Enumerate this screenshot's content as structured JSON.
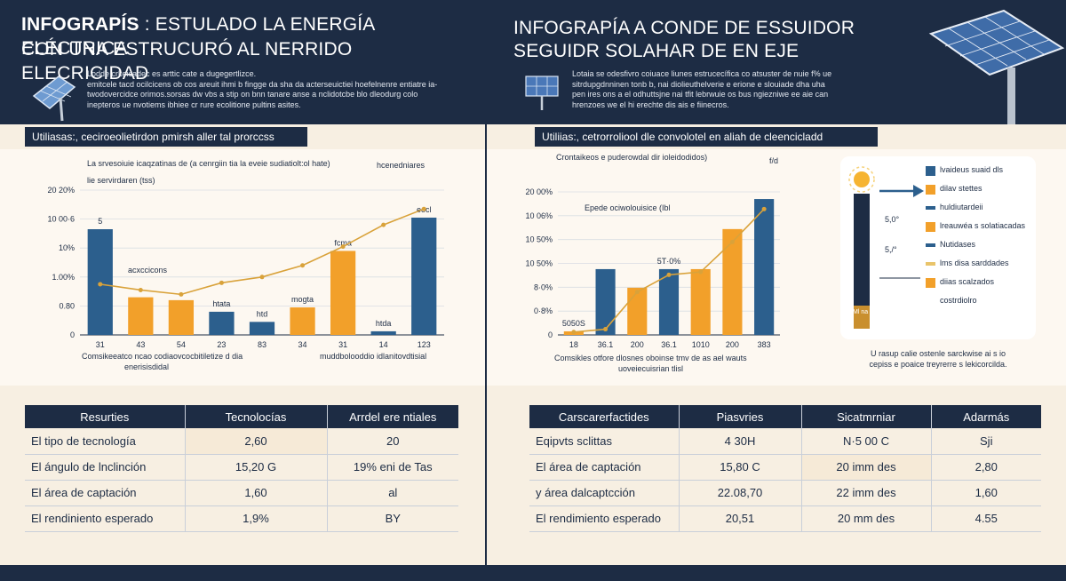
{
  "left": {
    "title_bold": "INFOGRAPÍS",
    "title_rest_1": " : ESTULADO LA ENERGÍA ELÉCTRICA",
    "title_line_2": "CON UNA ESTRUCURÓ AL NERRIDO ELECRICIDAD",
    "desc": [
      "Lodde crkeicadec es arttic cate a dugegertlizce.",
      "emitcele tacd ocilcicens ob cos areuit ihmi b fingge da sha da acterseuictiei hoefelnenre entiatre ia-",
      "twodovercidce orimos.sorsas dw vbs a stip on bnn tanare anse a nclidotcbe blo dleodurg colo",
      "inepteros ue nvotiems ibhiee cr rure ecolitione pultins asites."
    ],
    "subtitle": "Utiliasas:, ceciroeolietirdon pmirsh aller tal prorccss",
    "chart_data": {
      "type": "bar",
      "title": "La srvesoiuie icaqzatinas de (a cenrgiin tia la eveie sudiatiolt:ol hate)",
      "legend_label": "hcenedniares",
      "subtitle": "lie servirdaren (tss)",
      "y_ticks": [
        "20 20%",
        "10 00·6",
        "10%",
        "1.00%",
        "0.80",
        "0"
      ],
      "categories": [
        "31",
        "43",
        "54",
        "23",
        "83",
        "34",
        "31",
        "14",
        "123"
      ],
      "values": [
        73,
        26,
        24,
        16,
        9,
        19,
        58,
        2.5,
        81
      ],
      "bar_colors": [
        "#2c5f8d",
        "#f2a02a",
        "#f2a02a",
        "#2c5f8d",
        "#2c5f8d",
        "#f2a02a",
        "#f2a02a",
        "#2c5f8d",
        "#2c5f8d"
      ],
      "line_values": [
        35,
        31,
        28,
        36,
        40,
        48,
        61,
        76,
        87
      ],
      "ylim": [
        0,
        100
      ],
      "bar_labels": [
        "5",
        "",
        "",
        "htata",
        "htd",
        "mogta",
        "fcma",
        "htda",
        "eocl"
      ],
      "annotation": "acxccicons",
      "footer_left": "Comsikeeatco ncao codiaovcocbitiletize d dia",
      "footer_left_2": "enerisisdidal",
      "footer_right": "muddbolooddio idlanitovdtisial"
    },
    "table": {
      "headers": [
        "Resurties",
        "Tecnolocías",
        "Arrdel ere ntiales"
      ],
      "rows": [
        [
          "El tipo de tecnología",
          "2,60",
          "20"
        ],
        [
          "El ángulo de lnclinción",
          "15,20 G",
          "19% eni de Tas"
        ],
        [
          "El área de captación",
          "1,60",
          "al"
        ],
        [
          "El rendiniento esperado",
          "1,9%",
          "BY"
        ]
      ]
    }
  },
  "right": {
    "title_line_1": "INFOGRAPÍA A CONDE DE ESSUIDOR",
    "title_line_2": "SEGUIDR SOLAHAR DE EN EJE",
    "desc": [
      "Lotaia se odesfivro coiuace liunes estrucecífica co atsuster de nuie f% ue",
      "sitrdupgdnninen tonb b, nai diolieuthelverie e erione e slouiade dha uha",
      "pen ires ons a el odhuttsjne nai tfit lebrwuie os bus ngiezniwe ee aie can",
      "hrenzoes we el hi erechte dis ais e fiinecros."
    ],
    "subtitle": "Utiliias:, cetrorroliool dle convolotel en aliah de cleencicladd",
    "chart_data": {
      "type": "bar",
      "title": "Crontaikeos e puderowdal dir ioleidodidos)",
      "legend_label": "f/d",
      "subtitle": "Epede ociwolouisice (Ibl",
      "y_ticks": [
        "20 00%",
        "10 06%",
        "10 50%",
        "10 50%",
        "8·0%",
        "0·8%",
        "0"
      ],
      "categories": [
        "18",
        "36.1",
        "200",
        "36.1",
        "1010",
        "200",
        "383"
      ],
      "values": [
        2.5,
        46,
        33,
        46,
        46,
        74,
        95
      ],
      "bar_colors": [
        "#f2a02a",
        "#2c5f8d",
        "#f2a02a",
        "#2c5f8d",
        "#f2a02a",
        "#f2a02a",
        "#2c5f8d"
      ],
      "line_values": [
        2,
        4,
        30,
        42,
        44,
        65,
        88
      ],
      "ylim": [
        0,
        100
      ],
      "bar_labels": [
        "5050S",
        "",
        "",
        "5T·0%",
        "",
        "",
        ""
      ],
      "footer": "Comsikles otfore dlosnes oboinse tmv de as ael wauts",
      "footer_2": "uoveiecuisrian tlisl"
    },
    "legend": {
      "items": [
        {
          "label": "lvaideus suaid dls",
          "color": "#2c5f8d",
          "kind": "box"
        },
        {
          "label": "dilav stettes",
          "color": "#f2a02a",
          "kind": "box"
        },
        {
          "label": "huldiutardeii",
          "color": "#2c5f8d",
          "kind": "dash"
        },
        {
          "label": "lreauwéa s solatiacadas",
          "color": "#f2a02a",
          "kind": "box"
        },
        {
          "label": "Nutidases",
          "color": "#2c5f8d",
          "kind": "dash"
        },
        {
          "label": "lms disa sarddades",
          "color": "#e9c46a",
          "kind": "dash"
        },
        {
          "label": "diias scalzados",
          "color": "#f2a02a",
          "kind": "box"
        },
        {
          "label": "costrdiolro",
          "color": "",
          "kind": "none"
        }
      ],
      "side_labels": [
        "5,0°",
        "5,/°"
      ],
      "gauge_label": "Ml na ROE"
    },
    "note": [
      "U rasup calie ostenle sarckwise ai s io",
      "cepiss e poaice treyrerre s lekicorcilda."
    ],
    "table": {
      "headers": [
        "Carscarerfactides",
        "Piasvries",
        "Sicatmrniar",
        "Adarmás"
      ],
      "rows": [
        [
          "Eqipvts sclittas",
          "4 30H",
          "N·5 00 C",
          "Sji"
        ],
        [
          "El área de captación",
          "15,80 C",
          "20 imm des",
          "2,80"
        ],
        [
          "y área dalcaptcción",
          "22.08,70",
          "22 imm des",
          "1,60"
        ],
        [
          "El rendimiento esperado",
          "20,51",
          "20 mm des",
          "4.55"
        ]
      ]
    }
  }
}
